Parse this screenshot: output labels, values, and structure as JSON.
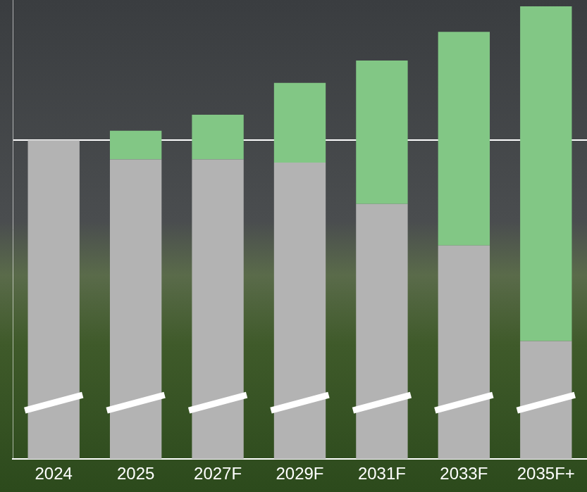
{
  "chart_data": {
    "type": "bar",
    "categories": [
      "2024",
      "2025",
      "2027F",
      "2029F",
      "2031F",
      "2033F",
      "2035F+"
    ],
    "series": [
      {
        "color": "#b3b3b3",
        "values": [
          100,
          94,
          94,
          93,
          80,
          67,
          37
        ]
      },
      {
        "color": "#82c785",
        "values": [
          0,
          9,
          14,
          25,
          45,
          67,
          105
        ]
      }
    ],
    "stacked": true,
    "ylim": [
      0,
      144
    ],
    "yticks": [
      100
    ],
    "grid": true,
    "tick_labels": "x"
  }
}
